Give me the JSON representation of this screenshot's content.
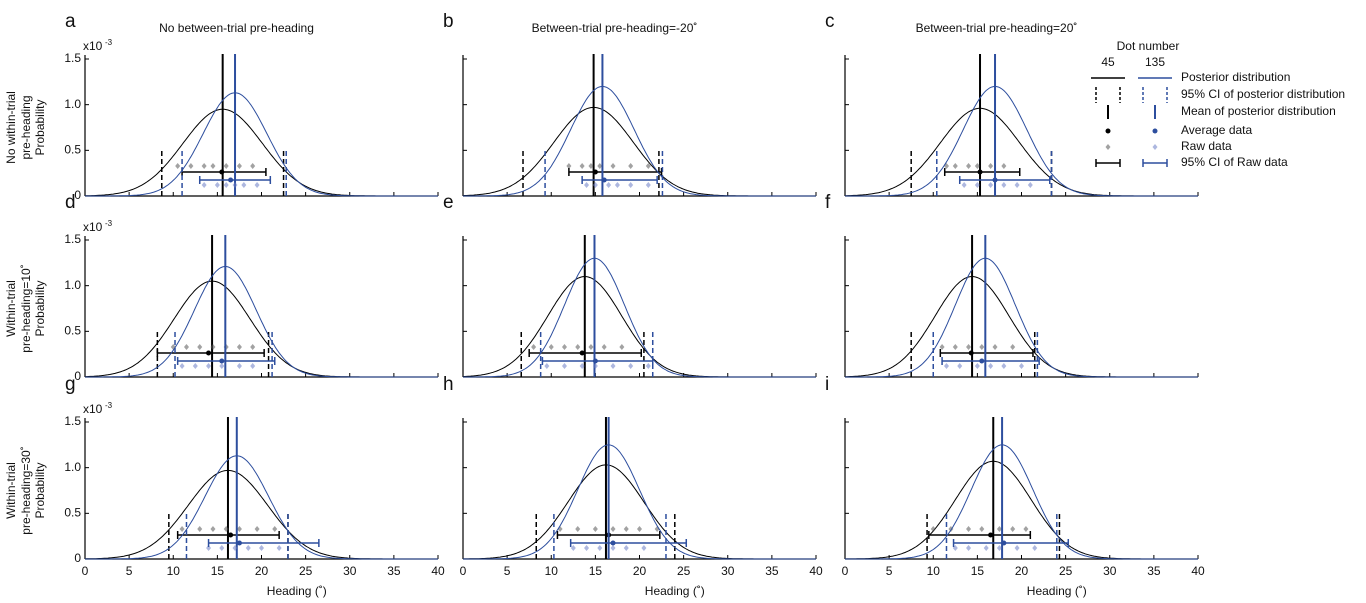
{
  "chart_data": {
    "type": "density",
    "column_titles": [
      "No between-trial pre-heading",
      "Between-trial pre-heading=-20˚",
      "Between-trial pre-heading=20˚"
    ],
    "row_labels": [
      [
        "No within-trial",
        "pre-heading"
      ],
      [
        "Within-trial",
        "pre-heading=10˚"
      ],
      [
        "Within-trial",
        "pre-heading=30˚"
      ]
    ],
    "x_label": "Heading (˚)",
    "y_label": "Probability",
    "y_multiplier": {
      "base": "x10",
      "exponent": "-3"
    },
    "xlim": [
      0,
      40
    ],
    "xticks": [
      0,
      5,
      10,
      15,
      20,
      25,
      30,
      35,
      40
    ],
    "ylim": [
      0,
      1.5
    ],
    "yticks": [
      0,
      0.5,
      {
        "value": 1,
        "label": "1.0"
      },
      1.5
    ],
    "legend": {
      "title": "Dot number",
      "entries": [
        "Posterior distribution",
        "95% CI of posterior distribution",
        "Mean of posterior distribution",
        "Average data",
        "Raw data",
        "95% CI of Raw data"
      ]
    },
    "series": [
      {
        "name": "45",
        "color": "#000000"
      },
      {
        "name": "135",
        "color": "#2d4e9e"
      }
    ],
    "panels": [
      {
        "letter": "a",
        "series": [
          {
            "mean": 15.6,
            "peak": 0.95,
            "sd": 4.5,
            "ci": [
              8.7,
              22.5
            ],
            "avg": 15.5,
            "raw_ci": [
              11,
              20.5
            ],
            "raw": [
              10.5,
              12,
              13.5,
              14.5,
              16,
              17.5,
              19
            ]
          },
          {
            "mean": 17,
            "peak": 1.13,
            "sd": 3.6,
            "ci": [
              11,
              22.8
            ],
            "avg": 16.5,
            "raw_ci": [
              13,
              21
            ],
            "raw": [
              13.5,
              15,
              16,
              17,
              18,
              19.5
            ]
          }
        ]
      },
      {
        "letter": "b",
        "series": [
          {
            "mean": 14.8,
            "peak": 0.97,
            "sd": 4.5,
            "ci": [
              6.8,
              22.2
            ],
            "avg": 15,
            "raw_ci": [
              12,
              22.5
            ],
            "raw": [
              12,
              13.5,
              14.5,
              15.5,
              17,
              19,
              21
            ]
          },
          {
            "mean": 15.8,
            "peak": 1.2,
            "sd": 3.6,
            "ci": [
              9.3,
              22.6
            ],
            "avg": 16,
            "raw_ci": [
              13.5,
              22
            ],
            "raw": [
              14,
              15,
              16.5,
              17.5,
              19,
              21
            ]
          }
        ]
      },
      {
        "letter": "c",
        "series": [
          {
            "mean": 15.3,
            "peak": 0.96,
            "sd": 4.5,
            "ci": [
              7.5,
              23.4
            ],
            "avg": 15.3,
            "raw_ci": [
              11.3,
              19.8
            ],
            "raw": [
              11.5,
              12.5,
              14,
              15,
              16.5,
              18
            ]
          },
          {
            "mean": 17,
            "peak": 1.2,
            "sd": 3.6,
            "ci": [
              10.4,
              23.4
            ],
            "avg": 17,
            "raw_ci": [
              13,
              23.2
            ],
            "raw": [
              13.5,
              15,
              16.5,
              18,
              19.5,
              21
            ]
          }
        ]
      },
      {
        "letter": "d",
        "series": [
          {
            "mean": 14.4,
            "peak": 1.05,
            "sd": 4.3,
            "ci": [
              8.2,
              20.8
            ],
            "avg": 14,
            "raw_ci": [
              8.2,
              20.3
            ],
            "raw": [
              10,
              11.5,
              13,
              14.5,
              16,
              17.5,
              19
            ]
          },
          {
            "mean": 15.9,
            "peak": 1.21,
            "sd": 3.5,
            "ci": [
              10.2,
              21.2
            ],
            "avg": 15.5,
            "raw_ci": [
              10.5,
              21.5
            ],
            "raw": [
              11,
              12.5,
              14,
              15.5,
              17.5,
              19
            ]
          }
        ]
      },
      {
        "letter": "e",
        "series": [
          {
            "mean": 13.8,
            "peak": 1.1,
            "sd": 4.2,
            "ci": [
              6.6,
              20.5
            ],
            "avg": 13.5,
            "raw_ci": [
              7.5,
              20.2
            ],
            "raw": [
              8,
              10,
              11.5,
              13,
              14.5,
              16,
              18
            ]
          },
          {
            "mean": 14.9,
            "peak": 1.3,
            "sd": 3.4,
            "ci": [
              8.8,
              21.5
            ],
            "avg": 15,
            "raw_ci": [
              9,
              21.5
            ],
            "raw": [
              9.5,
              11.5,
              13.5,
              15,
              17,
              19,
              21
            ]
          }
        ]
      },
      {
        "letter": "f",
        "series": [
          {
            "mean": 14.4,
            "peak": 1.1,
            "sd": 4.2,
            "ci": [
              7.5,
              21.5
            ],
            "avg": 14.3,
            "raw_ci": [
              10.8,
              21.3
            ],
            "raw": [
              11,
              12.5,
              14,
              15.5,
              17,
              19
            ]
          },
          {
            "mean": 15.9,
            "peak": 1.3,
            "sd": 3.4,
            "ci": [
              10,
              21.8
            ],
            "avg": 15.5,
            "raw_ci": [
              11,
              22
            ],
            "raw": [
              11.5,
              13,
              15,
              16.5,
              18,
              20
            ]
          }
        ]
      },
      {
        "letter": "g",
        "series": [
          {
            "mean": 16.2,
            "peak": 0.97,
            "sd": 4.5,
            "ci": [
              9.5,
              23
            ],
            "avg": 16.5,
            "raw_ci": [
              10.5,
              22
            ],
            "raw": [
              11,
              13,
              14.5,
              16,
              17.5,
              19.5,
              21.5
            ]
          },
          {
            "mean": 17.2,
            "peak": 1.13,
            "sd": 3.6,
            "ci": [
              11.5,
              23
            ],
            "avg": 17.5,
            "raw_ci": [
              14,
              26.5
            ],
            "raw": [
              14,
              15.5,
              17,
              18.5,
              20,
              22
            ]
          }
        ]
      },
      {
        "letter": "h",
        "series": [
          {
            "mean": 16.2,
            "peak": 1.03,
            "sd": 4.3,
            "ci": [
              8.3,
              24
            ],
            "avg": 16.5,
            "raw_ci": [
              10.7,
              22.3
            ],
            "raw": [
              11,
              13,
              15,
              17,
              18.5,
              20,
              22
            ]
          },
          {
            "mean": 16.5,
            "peak": 1.25,
            "sd": 3.5,
            "ci": [
              10.3,
              23
            ],
            "avg": 17,
            "raw_ci": [
              12.2,
              25.3
            ],
            "raw": [
              12.5,
              14,
              15.5,
              17,
              18.5,
              20.5
            ]
          }
        ]
      },
      {
        "letter": "i",
        "series": [
          {
            "mean": 16.8,
            "peak": 1.07,
            "sd": 4.3,
            "ci": [
              9.3,
              24.3
            ],
            "avg": 16.5,
            "raw_ci": [
              9.5,
              21
            ],
            "raw": [
              10,
              12,
              14,
              15.5,
              17.5,
              19,
              20.5
            ]
          },
          {
            "mean": 17.8,
            "peak": 1.25,
            "sd": 3.5,
            "ci": [
              11.5,
              24
            ],
            "avg": 18,
            "raw_ci": [
              12.3,
              25.3
            ],
            "raw": [
              12.5,
              14,
              16,
              17.5,
              19.5,
              21.5
            ]
          }
        ]
      }
    ]
  }
}
